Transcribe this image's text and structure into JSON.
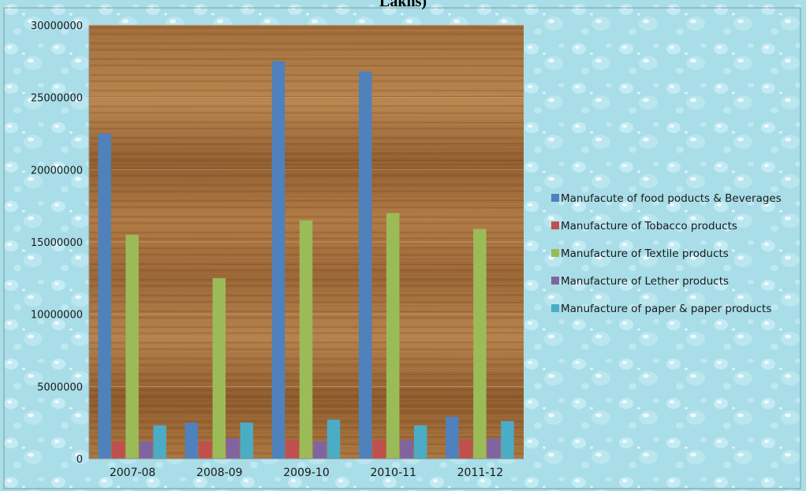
{
  "chart_data": {
    "type": "bar",
    "title": "Lakhs)",
    "categories": [
      "2007-08",
      "2008-09",
      "2009-10",
      "2010-11",
      "2011-12"
    ],
    "series": [
      {
        "name": "Manufacute of food poducts & Beverages",
        "color": "#4f81bd",
        "values": [
          22500000,
          2500000,
          27500000,
          26800000,
          2900000
        ]
      },
      {
        "name": "Manufacture of Tobacco products",
        "color": "#c0504d",
        "values": [
          1200000,
          1200000,
          1300000,
          1300000,
          1300000
        ]
      },
      {
        "name": "Manufacture of Textile products",
        "color": "#9bbb59",
        "values": [
          15500000,
          12500000,
          16500000,
          17000000,
          15900000
        ]
      },
      {
        "name": "Manufacture of Lether products",
        "color": "#8064a2",
        "values": [
          1200000,
          1400000,
          1200000,
          1300000,
          1400000
        ]
      },
      {
        "name": "Manufacture of paper & paper products",
        "color": "#4bacc6",
        "values": [
          2300000,
          2500000,
          2700000,
          2300000,
          2600000
        ]
      }
    ],
    "yticks": [
      "0",
      "5000000",
      "10000000",
      "15000000",
      "20000000",
      "25000000",
      "30000000"
    ],
    "ylim": [
      0,
      30000000
    ],
    "grid": true,
    "legend_position": "right",
    "colors": {
      "plot_background": "#a8753f",
      "outer_background": "#a9dde8"
    }
  }
}
